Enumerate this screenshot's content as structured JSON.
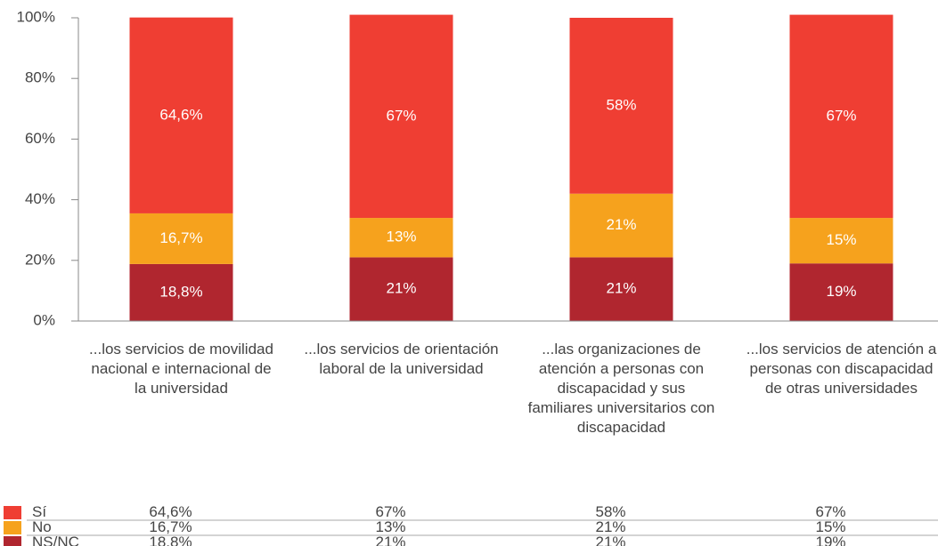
{
  "chart_data": {
    "type": "bar",
    "stacked": true,
    "categories": [
      "...los servicios de movilidad nacional e internacional de la universidad",
      "...los servicios de orientación laboral de la universidad",
      "...las organizaciones de atención a personas con discapacidad y sus familiares universitarios con discapacidad",
      "...los servicios de atención a personas con discapacidad de otras universidades"
    ],
    "series": [
      {
        "name": "NS/NC",
        "color": "#b0262f",
        "values": [
          18.8,
          21,
          21,
          19
        ],
        "value_labels": [
          "18,8%",
          "21%",
          "21%",
          "19%"
        ]
      },
      {
        "name": "No",
        "color": "#f6a21d",
        "values": [
          16.7,
          13,
          21,
          15
        ],
        "value_labels": [
          "16,7%",
          "13%",
          "21%",
          "15%"
        ]
      },
      {
        "name": "Sí",
        "color": "#ef3e33",
        "values": [
          64.6,
          67,
          58,
          67
        ],
        "value_labels": [
          "64,6%",
          "67%",
          "58%",
          "67%"
        ]
      }
    ],
    "ylim": [
      0,
      100
    ],
    "yticks": [
      {
        "value": 0,
        "label": "0%"
      },
      {
        "value": 20,
        "label": "20%"
      },
      {
        "value": 40,
        "label": "40%"
      },
      {
        "value": 60,
        "label": "60%"
      },
      {
        "value": 80,
        "label": "80%"
      },
      {
        "value": 100,
        "label": "100%"
      }
    ]
  }
}
